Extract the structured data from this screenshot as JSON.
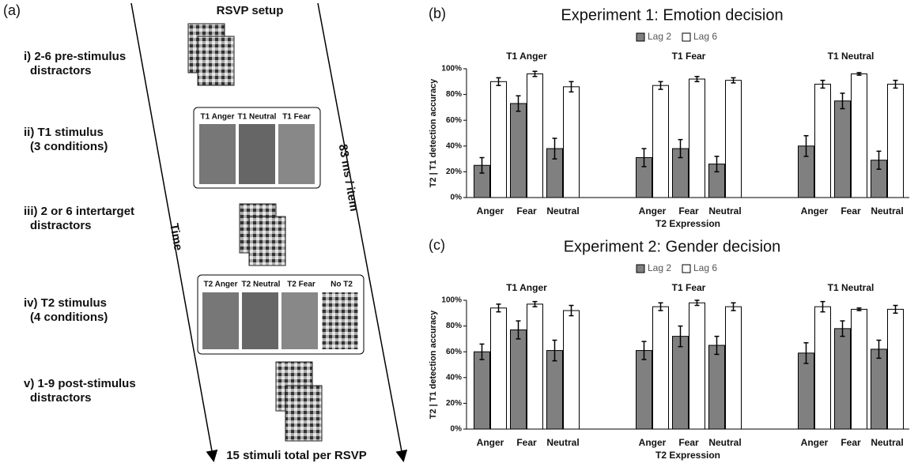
{
  "diagram": {
    "panel_label": "(a)",
    "title": "RSVP setup",
    "steps": [
      [
        "i) 2-6 pre-stimulus",
        "distractors"
      ],
      [
        "ii) T1 stimulus",
        "(3 conditions)"
      ],
      [
        "iii) 2 or 6 intertarget",
        "distractors"
      ],
      [
        "iv) T2 stimulus",
        "(4 conditions)"
      ],
      [
        "v) 1-9 post-stimulus",
        "distractors"
      ]
    ],
    "t1_labels": [
      "T1 Anger",
      "T1 Neutral",
      "T1 Fear"
    ],
    "t2_labels": [
      "T2 Anger",
      "T2 Neutral",
      "T2 Fear",
      "No T2"
    ],
    "time_label": "Time",
    "rate_label": "83 ms / item",
    "footer": "15 stimuli total per RSVP"
  },
  "chart_data": [
    {
      "type": "bar",
      "panel_label": "(b)",
      "title": "Experiment 1: Emotion decision",
      "group_labels": [
        "T1 Anger",
        "T1 Fear",
        "T1 Neutral"
      ],
      "categories": [
        "Anger",
        "Fear",
        "Neutral",
        "Anger",
        "Fear",
        "Neutral",
        "Anger",
        "Fear",
        "Neutral"
      ],
      "series": [
        {
          "name": "Lag 2",
          "color": "#808080",
          "values": [
            25,
            73,
            38,
            31,
            38,
            26,
            40,
            75,
            29
          ],
          "errors": [
            6,
            6,
            8,
            7,
            7,
            6,
            8,
            6,
            7
          ]
        },
        {
          "name": "Lag 6",
          "color": "#ffffff",
          "values": [
            90,
            96,
            86,
            87,
            92,
            91,
            88,
            96,
            88
          ],
          "errors": [
            3,
            2,
            4,
            3,
            2,
            2,
            3,
            1,
            3
          ]
        }
      ],
      "ylabel": "T2 | T1 detection accuracy",
      "xlabel": "T2 Expression",
      "ylim": [
        0,
        100
      ],
      "yticks": [
        {
          "value": 0,
          "label": "0%"
        },
        {
          "value": 20,
          "label": "20%"
        },
        {
          "value": 40,
          "label": "40%"
        },
        {
          "value": 60,
          "label": "60%"
        },
        {
          "value": 80,
          "label": "80%"
        },
        {
          "value": 100,
          "label": "100%"
        }
      ],
      "legend": "top"
    },
    {
      "type": "bar",
      "panel_label": "(c)",
      "title": "Experiment 2: Gender decision",
      "group_labels": [
        "T1 Anger",
        "T1 Fear",
        "T1 Neutral"
      ],
      "categories": [
        "Anger",
        "Fear",
        "Neutral",
        "Anger",
        "Fear",
        "Neutral",
        "Anger",
        "Fear",
        "Neutral"
      ],
      "series": [
        {
          "name": "Lag 2",
          "color": "#808080",
          "values": [
            60,
            77,
            61,
            61,
            72,
            65,
            59,
            78,
            62
          ],
          "errors": [
            6,
            7,
            8,
            7,
            8,
            7,
            8,
            6,
            7
          ]
        },
        {
          "name": "Lag 6",
          "color": "#ffffff",
          "values": [
            94,
            97,
            92,
            95,
            98,
            95,
            95,
            93,
            93
          ],
          "errors": [
            3,
            2,
            4,
            3,
            2,
            3,
            4,
            1,
            3
          ]
        }
      ],
      "ylabel": "T2 | T1 detection accuracy",
      "xlabel": "T2 Expression",
      "ylim": [
        0,
        100
      ],
      "yticks": [
        {
          "value": 0,
          "label": "0%"
        },
        {
          "value": 20,
          "label": "20%"
        },
        {
          "value": 40,
          "label": "40%"
        },
        {
          "value": 60,
          "label": "60%"
        },
        {
          "value": 80,
          "label": "80%"
        },
        {
          "value": 100,
          "label": "100%"
        }
      ],
      "legend": "top"
    }
  ]
}
